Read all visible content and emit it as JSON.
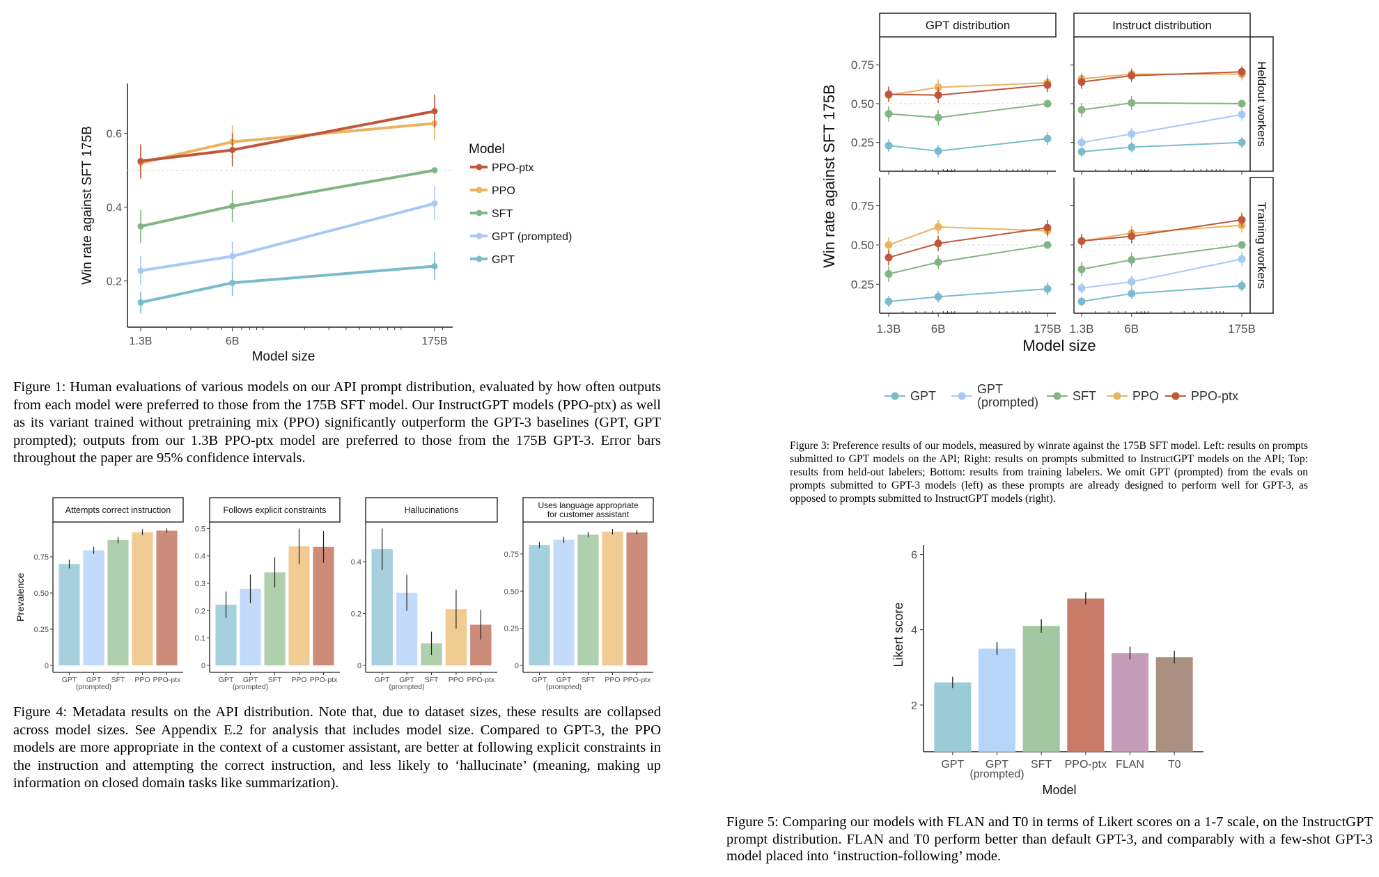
{
  "captions": {
    "figure1": "Figure 1: Human evaluations of various models on our API prompt distribution, evaluated by how often outputs from each model were preferred to those from the 175B SFT model. Our InstructGPT models (PPO-ptx) as well as its variant trained without pretraining mix (PPO) significantly outperform the GPT-3 baselines (GPT, GPT prompted); outputs from our 1.3B PPO-ptx model are preferred to those from the 175B GPT-3. Error bars throughout the paper are 95% confidence intervals.",
    "figure3": "Figure 3: Preference results of our models, measured by winrate against the 175B SFT model. Left: results on prompts submitted to GPT models on the API; Right: results on prompts submitted to InstructGPT models on the API; Top: results from held-out labelers; Bottom: results from training labelers. We omit GPT (prompted) from the evals on prompts submitted to GPT-3 models (left) as these prompts are already designed to perform well for GPT-3, as opposed to prompts submitted to InstructGPT models (right).",
    "figure4": "Figure 4: Metadata results on the API distribution. Note that, due to dataset sizes, these results are collapsed across model sizes. See Appendix E.2 for analysis that includes model size. Compared to GPT-3, the PPO models are more appropriate in the context of a customer assistant, are better at following explicit constraints in the instruction and attempting the correct instruction, and less likely to ‘hallucinate’ (meaning, making up information on closed domain tasks like summarization).",
    "figure5": "Figure 5: Comparing our models with FLAN and T0 in terms of Likert scores on a 1-7 scale, on the InstructGPT prompt distribution. FLAN and T0 perform better than default GPT-3, and comparably with a few-shot GPT-3 model placed into ‘instruction-following’ mode."
  },
  "chart_data": [
    {
      "id": "figure1",
      "type": "line",
      "title": "",
      "xlabel": "Model size",
      "ylabel": "Win rate against SFT 175B",
      "x": [
        "1.3B",
        "6B",
        "175B"
      ],
      "x_numeric": [
        1.3,
        6,
        175
      ],
      "xscale": "log",
      "ylim": [
        0.075,
        0.735
      ],
      "yticks": [
        0.2,
        0.4,
        0.6
      ],
      "ytick_labels": [
        "0.2",
        "0.4",
        "0.6"
      ],
      "reference_line": 0.5,
      "grid": false,
      "legend_title": "Model",
      "legend_position": "right",
      "series": [
        {
          "name": "PPO-ptx",
          "color": "#c0573b",
          "values": [
            0.525,
            0.555,
            0.66
          ],
          "err": [
            0.045,
            0.045,
            0.045
          ]
        },
        {
          "name": "PPO",
          "color": "#e9b35f",
          "values": [
            0.52,
            0.577,
            0.627
          ],
          "err": [
            0.045,
            0.045,
            0.045
          ]
        },
        {
          "name": "SFT",
          "color": "#82b584",
          "values": [
            0.348,
            0.403,
            0.5
          ],
          "err": [
            0.045,
            0.043,
            0.0
          ]
        },
        {
          "name": "GPT (prompted)",
          "color": "#a7c9f7",
          "values": [
            0.228,
            0.267,
            0.41
          ],
          "err": [
            0.04,
            0.04,
            0.045
          ]
        },
        {
          "name": "GPT",
          "color": "#7abccb",
          "values": [
            0.142,
            0.195,
            0.24
          ],
          "err": [
            0.03,
            0.035,
            0.038
          ]
        }
      ]
    },
    {
      "id": "figure3",
      "type": "line",
      "xlabel": "Model size",
      "ylabel": "Win rate against SFT 175B",
      "x": [
        "1.3B",
        "6B",
        "175B"
      ],
      "x_numeric": [
        1.3,
        6,
        175
      ],
      "xscale": "log",
      "ylim": [
        0.065,
        0.93
      ],
      "yticks": [
        0.25,
        0.5,
        0.75
      ],
      "ytick_labels": [
        "0.25",
        "0.50",
        "0.75"
      ],
      "reference_line": 0.5,
      "columns": [
        "GPT distribution",
        "Instruct distribution"
      ],
      "rows": [
        "Heldout workers",
        "Training workers"
      ],
      "legend_position": "bottom",
      "legend": [
        {
          "label": "GPT",
          "color": "#7abccb"
        },
        {
          "label": "GPT",
          "label2": "(prompted)",
          "color": "#a7c9f7"
        },
        {
          "label": "SFT",
          "color": "#82b584"
        },
        {
          "label": "PPO",
          "color": "#e9b35f"
        },
        {
          "label": "PPO-ptx",
          "color": "#c0573b"
        }
      ],
      "panels": [
        {
          "column": "GPT distribution",
          "row": "Heldout workers",
          "series": [
            {
              "name": "GPT",
              "color": "#7abccb",
              "values": [
                0.23,
                0.195,
                0.275
              ],
              "err": [
                0.04,
                0.04,
                0.04
              ]
            },
            {
              "name": "SFT",
              "color": "#82b584",
              "values": [
                0.435,
                0.41,
                0.5
              ],
              "err": [
                0.05,
                0.05,
                0.0
              ]
            },
            {
              "name": "PPO",
              "color": "#e9b35f",
              "values": [
                0.555,
                0.605,
                0.635
              ],
              "err": [
                0.04,
                0.05,
                0.05
              ]
            },
            {
              "name": "PPO-ptx",
              "color": "#c0573b",
              "values": [
                0.56,
                0.555,
                0.62
              ],
              "err": [
                0.05,
                0.05,
                0.045
              ]
            }
          ]
        },
        {
          "column": "Instruct distribution",
          "row": "Heldout workers",
          "series": [
            {
              "name": "GPT",
              "color": "#7abccb",
              "values": [
                0.19,
                0.22,
                0.25
              ],
              "err": [
                0.035,
                0.035,
                0.035
              ]
            },
            {
              "name": "GPT (prompted)",
              "color": "#a7c9f7",
              "values": [
                0.25,
                0.305,
                0.43
              ],
              "err": [
                0.04,
                0.04,
                0.04
              ]
            },
            {
              "name": "SFT",
              "color": "#82b584",
              "values": [
                0.46,
                0.505,
                0.5
              ],
              "err": [
                0.045,
                0.045,
                0.0
              ]
            },
            {
              "name": "PPO",
              "color": "#e9b35f",
              "values": [
                0.66,
                0.69,
                0.69
              ],
              "err": [
                0.04,
                0.04,
                0.04
              ]
            },
            {
              "name": "PPO-ptx",
              "color": "#c0573b",
              "values": [
                0.64,
                0.68,
                0.705
              ],
              "err": [
                0.045,
                0.04,
                0.035
              ]
            }
          ]
        },
        {
          "column": "GPT distribution",
          "row": "Training workers",
          "series": [
            {
              "name": "GPT",
              "color": "#7abccb",
              "values": [
                0.14,
                0.17,
                0.22
              ],
              "err": [
                0.035,
                0.035,
                0.04
              ]
            },
            {
              "name": "SFT",
              "color": "#82b584",
              "values": [
                0.315,
                0.39,
                0.5
              ],
              "err": [
                0.05,
                0.045,
                0.0
              ]
            },
            {
              "name": "PPO",
              "color": "#e9b35f",
              "values": [
                0.5,
                0.615,
                0.59
              ],
              "err": [
                0.05,
                0.045,
                0.045
              ]
            },
            {
              "name": "PPO-ptx",
              "color": "#c0573b",
              "values": [
                0.42,
                0.51,
                0.61
              ],
              "err": [
                0.05,
                0.05,
                0.05
              ]
            }
          ]
        },
        {
          "column": "Instruct distribution",
          "row": "Training workers",
          "series": [
            {
              "name": "GPT",
              "color": "#7abccb",
              "values": [
                0.14,
                0.19,
                0.24
              ],
              "err": [
                0.03,
                0.035,
                0.035
              ]
            },
            {
              "name": "GPT (prompted)",
              "color": "#a7c9f7",
              "values": [
                0.225,
                0.265,
                0.41
              ],
              "err": [
                0.035,
                0.04,
                0.045
              ]
            },
            {
              "name": "SFT",
              "color": "#82b584",
              "values": [
                0.345,
                0.405,
                0.5
              ],
              "err": [
                0.045,
                0.045,
                0.0
              ]
            },
            {
              "name": "PPO",
              "color": "#e9b35f",
              "values": [
                0.525,
                0.575,
                0.625
              ],
              "err": [
                0.045,
                0.045,
                0.045
              ]
            },
            {
              "name": "PPO-ptx",
              "color": "#c0573b",
              "values": [
                0.525,
                0.555,
                0.66
              ],
              "err": [
                0.045,
                0.045,
                0.045
              ]
            }
          ]
        }
      ]
    },
    {
      "id": "figure4",
      "type": "bar",
      "ylabel": "Prevalence",
      "categories": [
        "GPT",
        "GPT",
        "SFT",
        "PPO",
        "PPO-ptx"
      ],
      "category_sublabels": [
        "",
        "(prompted)",
        "",
        "",
        ""
      ],
      "colors": [
        "#a6d0dd",
        "#c2dbfb",
        "#aed0ad",
        "#f0cb92",
        "#cd8b79"
      ],
      "panels": [
        {
          "title": "Attempts correct instruction",
          "ylim": [
            0,
            0.99
          ],
          "yticks": [
            0,
            0.25,
            0.5,
            0.75
          ],
          "ytick_labels": [
            "0",
            "0.25",
            "0.50",
            "0.75"
          ],
          "values": [
            0.7,
            0.795,
            0.865,
            0.92,
            0.93
          ],
          "err": [
            0.03,
            0.025,
            0.022,
            0.02,
            0.015
          ]
        },
        {
          "title": "Follows explicit constraints",
          "ylim": [
            0,
            0.524
          ],
          "yticks": [
            0,
            0.1,
            0.2,
            0.3,
            0.4,
            0.5
          ],
          "ytick_labels": [
            "0",
            "0.1",
            "0.2",
            "0.3",
            "0.4",
            "0.5"
          ],
          "values": [
            0.222,
            0.28,
            0.34,
            0.435,
            0.433
          ],
          "err": [
            0.048,
            0.052,
            0.055,
            0.065,
            0.058
          ]
        },
        {
          "title": "Hallucinations",
          "ylim": [
            0,
            0.553
          ],
          "yticks": [
            0,
            0.2,
            0.4
          ],
          "ytick_labels": [
            "0",
            "0.2",
            "0.4"
          ],
          "values": [
            0.448,
            0.28,
            0.085,
            0.217,
            0.157
          ],
          "err": [
            0.08,
            0.07,
            0.045,
            0.075,
            0.057
          ]
        },
        {
          "title": "Uses language appropriate",
          "title2": "for customer assistant",
          "ylim": [
            0,
            0.965
          ],
          "yticks": [
            0,
            0.25,
            0.5,
            0.75
          ],
          "ytick_labels": [
            "0",
            "0.25",
            "0.50",
            "0.75"
          ],
          "values": [
            0.81,
            0.845,
            0.88,
            0.9,
            0.895
          ],
          "err": [
            0.02,
            0.02,
            0.018,
            0.018,
            0.015
          ]
        }
      ]
    },
    {
      "id": "figure5",
      "type": "bar",
      "xlabel": "Model",
      "ylabel": "Likert score",
      "categories": [
        "GPT",
        "GPT",
        "SFT",
        "PPO-ptx",
        "FLAN",
        "T0"
      ],
      "category_sublabels": [
        "",
        "(prompted)",
        "",
        "",
        "",
        ""
      ],
      "values": [
        2.6,
        3.5,
        4.1,
        4.83,
        3.38,
        3.27
      ],
      "err": [
        0.15,
        0.17,
        0.18,
        0.16,
        0.17,
        0.17
      ],
      "colors": [
        "#9ccbd8",
        "#b5d5f9",
        "#a3c7a0",
        "#c77b68",
        "#c59db8",
        "#aa9080"
      ],
      "ylim": [
        0.76,
        6.25
      ],
      "yticks": [
        2,
        4,
        6
      ],
      "ytick_labels": [
        "2",
        "4",
        "6"
      ]
    }
  ]
}
